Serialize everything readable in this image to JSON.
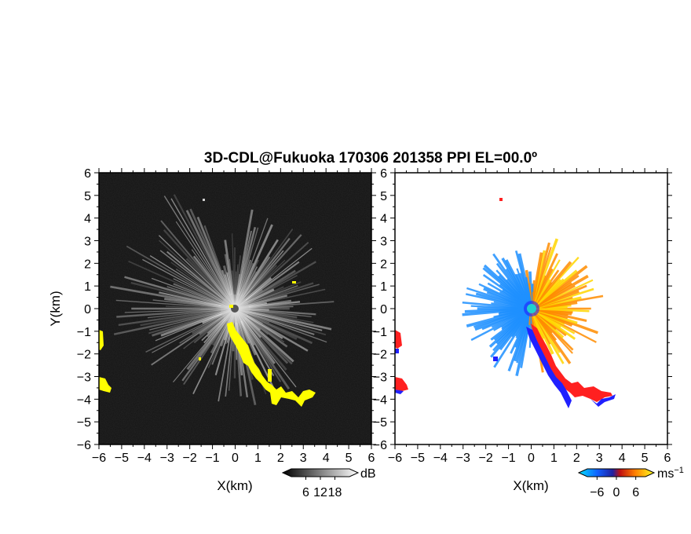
{
  "chart_data": [
    {
      "type": "heatmap",
      "panel": "reflectivity",
      "title": "3D-CDL@Fukuoka 170306 201358 PPI EL=00.0º",
      "xlabel": "X(km)",
      "ylabel": "Y(km)",
      "xlim": [
        -6,
        6
      ],
      "ylim": [
        -6,
        6
      ],
      "xticks": [
        "−6",
        "−5",
        "−4",
        "−3",
        "−2",
        "−1",
        "0",
        "1",
        "2",
        "3",
        "4",
        "5",
        "6"
      ],
      "yticks": [
        "6",
        "5",
        "4",
        "3",
        "2",
        "1",
        "0",
        "−1",
        "−2",
        "−3",
        "−4",
        "−5",
        "−6"
      ],
      "colorbar": {
        "unit": "dB",
        "ticks": [
          "6",
          "12",
          "18"
        ],
        "range": [
          0,
          24
        ]
      },
      "background": "#2a2a2a",
      "echo_color": "#ffff00"
    },
    {
      "type": "heatmap",
      "panel": "doppler_velocity",
      "xlabel": "X(km)",
      "xlim": [
        -6,
        6
      ],
      "ylim": [
        -6,
        6
      ],
      "xticks": [
        "−6",
        "−5",
        "−4",
        "−3",
        "−2",
        "−1",
        "0",
        "1",
        "2",
        "3",
        "4",
        "5",
        "6"
      ],
      "yticks": [
        "6",
        "5",
        "4",
        "3",
        "2",
        "1",
        "0",
        "−1",
        "−2",
        "−3",
        "−4",
        "−5",
        "−6"
      ],
      "colorbar": {
        "unit": "ms",
        "unit_exp": "−1",
        "ticks": [
          "−6",
          "0",
          "6"
        ],
        "range": [
          -9,
          9
        ]
      },
      "colors": {
        "negative": "#1e90ff",
        "positive": "#ff8c00",
        "far_positive": "#ffd700",
        "edge_red": "#ff2020",
        "edge_blue": "#2020ff",
        "center": "#20d0d0"
      }
    }
  ]
}
